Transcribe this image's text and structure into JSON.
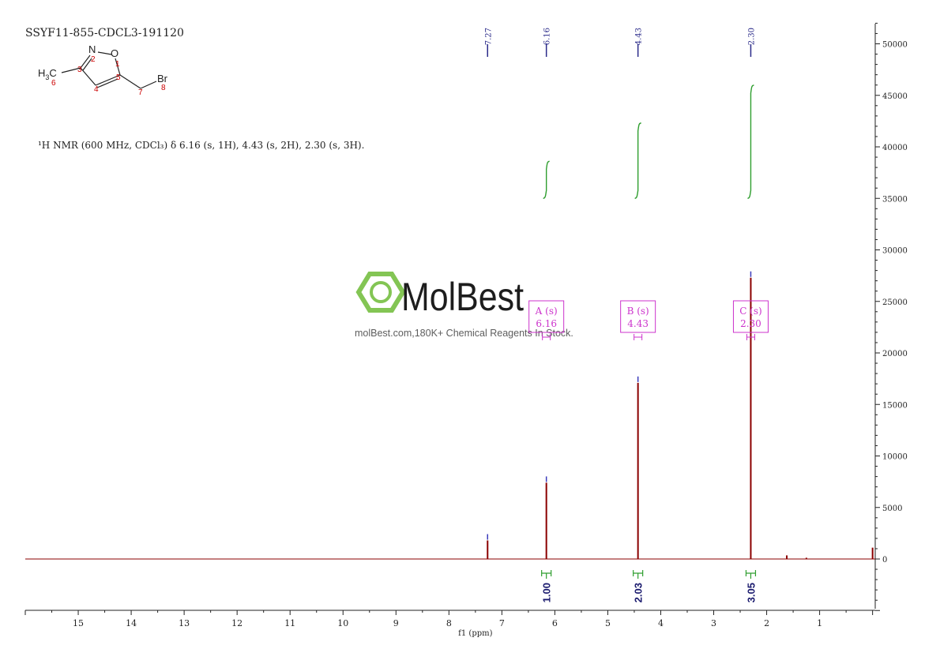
{
  "sample_id": "SSYF11-855-CDCL3-191120",
  "nmr_caption": "¹H NMR (600 MHz, CDCl₃) δ 6.16 (s, 1H), 4.43 (s, 2H), 2.30 (s, 3H).",
  "structure": {
    "atoms": {
      "ch3": "H3C",
      "n": "N",
      "o": "O",
      "br": "Br"
    },
    "numbers": [
      "1",
      "2",
      "3",
      "4",
      "5",
      "6",
      "7",
      "8"
    ],
    "number_color": "#cc0000"
  },
  "watermark": {
    "brand": "MolBest",
    "tagline": "molBest.com,180K+ Chemical Reagents In Stock.",
    "color": "#7dc24b"
  },
  "peak_labels": [
    "7.27",
    "6.16",
    "4.43",
    "2.30"
  ],
  "multiplets": [
    {
      "label": "A (s)",
      "shift": "6.16"
    },
    {
      "label": "B (s)",
      "shift": "4.43"
    },
    {
      "label": "C (s)",
      "shift": "2.30"
    }
  ],
  "integrals": [
    "1.00",
    "2.03",
    "3.05"
  ],
  "colors": {
    "spectrum": "#8b0000",
    "integral_curve": "#2f9e2f",
    "peak_label": "#2b2b8a",
    "multiplet_box": "#cc33cc",
    "integral_value": "#1a1a6e"
  },
  "chart_data": {
    "type": "line",
    "xlabel": "f1 (ppm)",
    "xlim": [
      16.0,
      -0.05
    ],
    "x_ticks": [
      15,
      14,
      13,
      12,
      11,
      10,
      9,
      8,
      7,
      6,
      5,
      4,
      3,
      2,
      1
    ],
    "ylim": [
      -5000,
      52000
    ],
    "y_ticks": [
      0,
      5000,
      10000,
      15000,
      20000,
      25000,
      30000,
      35000,
      40000,
      45000,
      50000
    ],
    "peaks": [
      {
        "ppm": 7.27,
        "height": 1800
      },
      {
        "ppm": 6.16,
        "height": 7400
      },
      {
        "ppm": 4.43,
        "height": 17100
      },
      {
        "ppm": 2.3,
        "height": 27300
      },
      {
        "ppm": 1.62,
        "height": 350
      },
      {
        "ppm": 1.25,
        "height": 120
      },
      {
        "ppm": 0.0,
        "height": 1100
      }
    ],
    "integral_regions": [
      {
        "from": 6.22,
        "to": 6.1,
        "value": 1.0
      },
      {
        "from": 4.49,
        "to": 4.37,
        "value": 2.03
      },
      {
        "from": 2.36,
        "to": 2.24,
        "value": 3.05
      }
    ]
  }
}
